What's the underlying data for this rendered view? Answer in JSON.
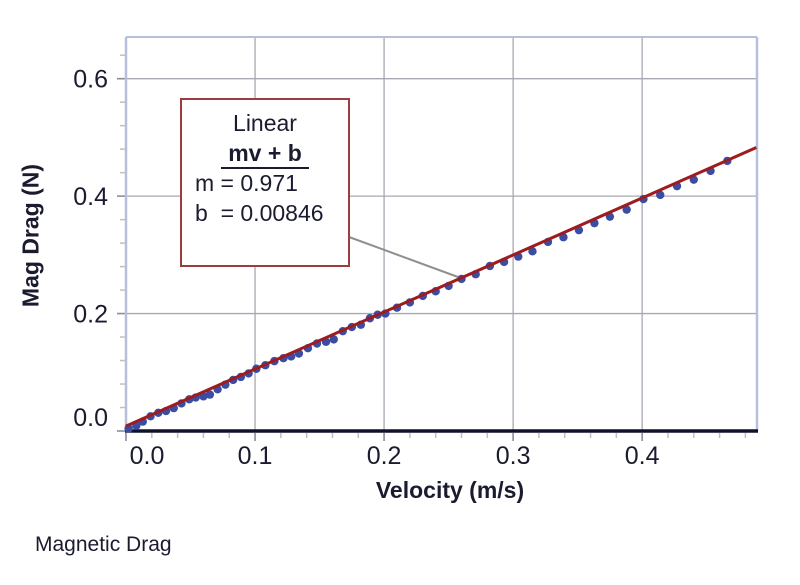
{
  "chart_data": {
    "type": "scatter",
    "title": "Magnetic Drag",
    "xlabel": "Velocity (m/s)",
    "ylabel": "Mag Drag (N)",
    "xlim": [
      0,
      0.489
    ],
    "ylim": [
      0,
      0.671
    ],
    "grid": true,
    "legend": "none",
    "x_ticks": [
      0.0,
      0.1,
      0.2,
      0.3,
      0.4
    ],
    "x_tick_labels": [
      "0.0",
      "0.1",
      "0.2",
      "0.3",
      "0.4"
    ],
    "y_ticks": [
      0.0,
      0.2,
      0.4,
      0.6
    ],
    "y_tick_labels": [
      "0.0",
      "0.2",
      "0.4",
      "0.6"
    ],
    "x_minor_step": 0.02,
    "y_minor_step": 0.04,
    "points": [
      [
        0.002,
        0.004
      ],
      [
        0.008,
        0.009
      ],
      [
        0.013,
        0.016
      ],
      [
        0.019,
        0.025
      ],
      [
        0.025,
        0.031
      ],
      [
        0.031,
        0.034
      ],
      [
        0.037,
        0.039
      ],
      [
        0.043,
        0.047
      ],
      [
        0.049,
        0.054
      ],
      [
        0.054,
        0.057
      ],
      [
        0.06,
        0.059
      ],
      [
        0.065,
        0.062
      ],
      [
        0.071,
        0.071
      ],
      [
        0.077,
        0.079
      ],
      [
        0.083,
        0.087
      ],
      [
        0.089,
        0.092
      ],
      [
        0.095,
        0.098
      ],
      [
        0.101,
        0.106
      ],
      [
        0.108,
        0.112
      ],
      [
        0.115,
        0.119
      ],
      [
        0.122,
        0.124
      ],
      [
        0.128,
        0.127
      ],
      [
        0.134,
        0.132
      ],
      [
        0.141,
        0.141
      ],
      [
        0.148,
        0.149
      ],
      [
        0.155,
        0.152
      ],
      [
        0.161,
        0.156
      ],
      [
        0.168,
        0.17
      ],
      [
        0.175,
        0.177
      ],
      [
        0.182,
        0.181
      ],
      [
        0.189,
        0.192
      ],
      [
        0.195,
        0.198
      ],
      [
        0.201,
        0.2
      ],
      [
        0.21,
        0.21
      ],
      [
        0.22,
        0.219
      ],
      [
        0.23,
        0.23
      ],
      [
        0.24,
        0.238
      ],
      [
        0.25,
        0.247
      ],
      [
        0.26,
        0.259
      ],
      [
        0.271,
        0.267
      ],
      [
        0.282,
        0.281
      ],
      [
        0.293,
        0.288
      ],
      [
        0.304,
        0.297
      ],
      [
        0.315,
        0.306
      ],
      [
        0.327,
        0.322
      ],
      [
        0.339,
        0.33
      ],
      [
        0.351,
        0.342
      ],
      [
        0.363,
        0.354
      ],
      [
        0.375,
        0.365
      ],
      [
        0.388,
        0.377
      ],
      [
        0.401,
        0.395
      ],
      [
        0.414,
        0.402
      ],
      [
        0.427,
        0.417
      ],
      [
        0.44,
        0.428
      ],
      [
        0.453,
        0.443
      ],
      [
        0.466,
        0.46
      ]
    ],
    "fit": {
      "type": "linear",
      "m": 0.971,
      "b": 0.00846,
      "x_start": 0.0,
      "x_end": 0.4885
    },
    "annotation": {
      "title": "Linear",
      "equation": "mv + b",
      "slope_label": "m = 0.971",
      "intercept_label": "b  = 0.00846"
    }
  },
  "colors": {
    "text": "#1b1b30",
    "grid": "#a6a8b2",
    "plot_border": "#b7bfdc",
    "axis_dark": "#10112c",
    "point": "#3a4da3",
    "fit_line": "#9e1b1e",
    "box_border": "#9d3c3c",
    "callout": "#8f8f8f",
    "major_tick": "#8b8d98",
    "minor_tick": "#c9bcba"
  }
}
